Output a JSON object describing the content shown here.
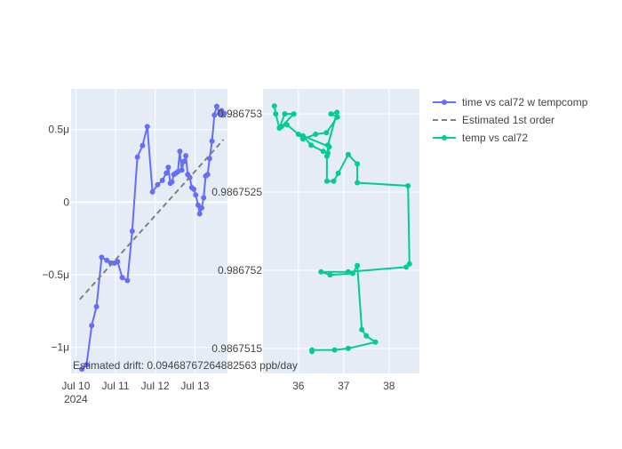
{
  "colors": {
    "series_main": "#636efa",
    "series_fit": "#808080",
    "series_temp": "#00cc96",
    "plot_bg": "#e5ecf6",
    "grid": "#ffffff",
    "text": "#444444"
  },
  "annotation": "Estimated drift:  0.0946876726488256​3 ppb/day",
  "chart_data": [
    {
      "type": "line",
      "xlabel": "",
      "ylabel": "",
      "x_ticks": [
        {
          "value": 10,
          "label": "Jul 10",
          "sublabel": "2024"
        },
        {
          "value": 11,
          "label": "Jul 11",
          "sublabel": ""
        },
        {
          "value": 12,
          "label": "Jul 12",
          "sublabel": ""
        },
        {
          "value": 13,
          "label": "Jul 13",
          "sublabel": ""
        }
      ],
      "y_ticks": [
        {
          "value": 0.5,
          "label": "0.5μ"
        },
        {
          "value": 0,
          "label": "0"
        },
        {
          "value": -0.5,
          "label": "−0.5μ"
        },
        {
          "value": -1,
          "label": "−1μ"
        }
      ],
      "xlim": [
        9.88,
        13.82
      ],
      "ylim": [
        -1.18,
        0.78
      ],
      "series": [
        {
          "name": "time vs cal72 w tempcomp",
          "style": "lines+markers",
          "x": [
            10.15,
            10.27,
            10.4,
            10.52,
            10.65,
            10.78,
            10.88,
            10.97,
            11.05,
            11.17,
            11.3,
            11.42,
            11.55,
            11.68,
            11.8,
            11.93,
            12.06,
            12.18,
            12.28,
            12.33,
            12.38,
            12.42,
            12.47,
            12.52,
            12.57,
            12.62,
            12.67,
            12.72,
            12.77,
            12.82,
            12.87,
            12.92,
            12.97,
            13.02,
            13.08,
            13.12,
            13.17,
            13.22,
            13.27,
            13.32,
            13.37,
            13.43,
            13.49,
            13.55,
            13.62,
            13.67,
            13.7,
            13.74
          ],
          "y": [
            -1.15,
            -1.12,
            -0.85,
            -0.72,
            -0.38,
            -0.4,
            -0.42,
            -0.42,
            -0.41,
            -0.52,
            -0.54,
            -0.2,
            0.31,
            0.39,
            0.52,
            0.07,
            0.12,
            0.15,
            0.2,
            0.24,
            0.13,
            0.14,
            0.19,
            0.2,
            0.21,
            0.35,
            0.22,
            0.28,
            0.32,
            0.19,
            0.17,
            0.1,
            0.09,
            0.05,
            -0.02,
            -0.08,
            -0.04,
            0.03,
            0.18,
            0.19,
            0.3,
            0.42,
            0.6,
            0.66,
            0.61,
            0.63,
            0.6,
            0.61
          ]
        },
        {
          "name": "Estimated 1st order",
          "style": "dash",
          "x": [
            10.1,
            13.72
          ],
          "y": [
            -0.67,
            0.43
          ]
        }
      ]
    },
    {
      "type": "line",
      "xlabel": "",
      "ylabel": "",
      "x_ticks": [
        {
          "value": 36,
          "label": "36"
        },
        {
          "value": 37,
          "label": "37"
        },
        {
          "value": 38,
          "label": "38"
        }
      ],
      "y_ticks": [
        {
          "value": 0.986753,
          "label": "0.986753"
        },
        {
          "value": 0.9867525,
          "label": "0.9867525"
        },
        {
          "value": 0.986752,
          "label": "0.986752"
        },
        {
          "value": 0.9867515,
          "label": "0.9867515"
        }
      ],
      "xlim": [
        35.22,
        38.67
      ],
      "ylim": [
        0.98675134,
        0.98675316
      ],
      "series": [
        {
          "name": "temp vs cal72",
          "style": "lines+markers",
          "x": [
            35.47,
            35.5,
            35.58,
            35.7,
            35.9,
            35.63,
            35.75,
            36.0,
            36.1,
            36.38,
            36.62,
            36.86,
            36.72,
            36.85,
            36.65,
            36.65,
            36.55,
            36.28,
            36.1,
            36.68,
            36.63,
            36.63,
            36.78,
            36.88,
            37.1,
            37.3,
            37.3,
            38.42,
            38.45,
            38.38,
            37.1,
            36.5,
            36.7,
            37.2,
            37.3,
            37.4,
            37.5,
            37.7,
            37.1,
            36.8,
            36.3,
            36.3
          ],
          "y": [
            0.98675305,
            0.986753,
            0.98675291,
            0.986753,
            0.986753,
            0.98675292,
            0.98675293,
            0.98675287,
            0.98675284,
            0.98675287,
            0.98675288,
            0.98675298,
            0.986753,
            0.98675301,
            0.9867528,
            0.98675275,
            0.98675276,
            0.9867528,
            0.98675286,
            0.98675279,
            0.98675273,
            0.98675257,
            0.98675257,
            0.98675262,
            0.98675274,
            0.98675268,
            0.98675256,
            0.98675254,
            0.98675204,
            0.98675202,
            0.98675199,
            0.98675199,
            0.98675197,
            0.98675198,
            0.98675203,
            0.98675162,
            0.98675158,
            0.98675154,
            0.9867515,
            0.98675149,
            0.98675149,
            0.98675148
          ]
        }
      ]
    }
  ],
  "legend": [
    {
      "name": "time vs cal72 w tempcomp",
      "kind": "line-marker",
      "color_key": "series_main"
    },
    {
      "name": "Estimated 1st order",
      "kind": "dash",
      "color_key": "series_fit"
    },
    {
      "name": "temp vs cal72",
      "kind": "line-marker",
      "color_key": "series_temp"
    }
  ]
}
